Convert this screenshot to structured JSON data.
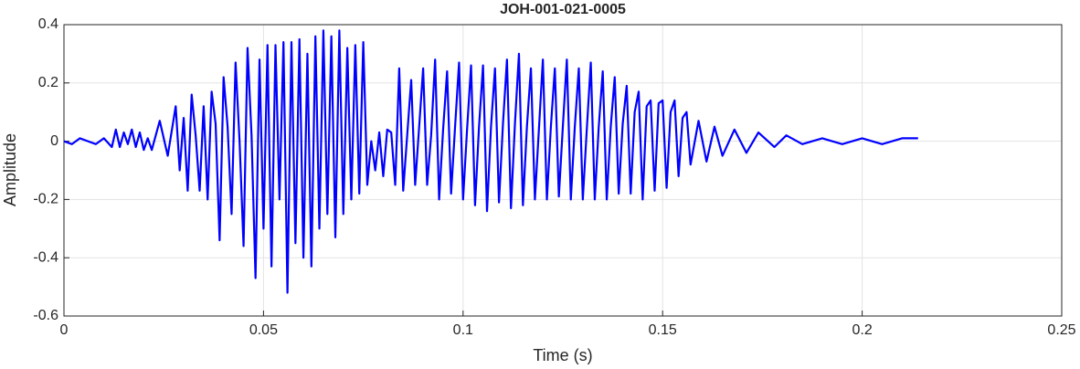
{
  "chart_data": {
    "type": "line",
    "title": "JOH-001-021-0005",
    "xlabel": "Time (s)",
    "ylabel": "Amplitude",
    "xlim": [
      0,
      0.25
    ],
    "xticks": [
      0,
      0.05,
      0.1,
      0.15,
      0.2,
      0.25
    ],
    "ylim": [
      -0.6,
      0.4
    ],
    "yticks": [
      -0.6,
      -0.4,
      -0.2,
      0,
      0.2,
      0.4
    ],
    "grid": true,
    "x": [
      0,
      0.002,
      0.004,
      0.006,
      0.008,
      0.01,
      0.012,
      0.013,
      0.014,
      0.015,
      0.016,
      0.017,
      0.018,
      0.019,
      0.02,
      0.021,
      0.022,
      0.024,
      0.026,
      0.028,
      0.029,
      0.03,
      0.031,
      0.032,
      0.033,
      0.034,
      0.035,
      0.036,
      0.037,
      0.038,
      0.039,
      0.04,
      0.041,
      0.042,
      0.043,
      0.044,
      0.045,
      0.046,
      0.047,
      0.048,
      0.049,
      0.05,
      0.051,
      0.052,
      0.053,
      0.054,
      0.055,
      0.056,
      0.057,
      0.058,
      0.059,
      0.06,
      0.061,
      0.062,
      0.063,
      0.064,
      0.065,
      0.066,
      0.067,
      0.068,
      0.069,
      0.07,
      0.071,
      0.072,
      0.073,
      0.074,
      0.075,
      0.076,
      0.077,
      0.078,
      0.079,
      0.08,
      0.081,
      0.082,
      0.083,
      0.084,
      0.085,
      0.086,
      0.087,
      0.088,
      0.089,
      0.09,
      0.091,
      0.092,
      0.093,
      0.094,
      0.095,
      0.096,
      0.097,
      0.098,
      0.099,
      0.1,
      0.101,
      0.102,
      0.103,
      0.104,
      0.105,
      0.106,
      0.107,
      0.108,
      0.109,
      0.11,
      0.111,
      0.112,
      0.113,
      0.114,
      0.115,
      0.116,
      0.117,
      0.118,
      0.119,
      0.12,
      0.121,
      0.122,
      0.123,
      0.124,
      0.125,
      0.126,
      0.127,
      0.128,
      0.129,
      0.13,
      0.131,
      0.132,
      0.133,
      0.134,
      0.135,
      0.136,
      0.137,
      0.138,
      0.139,
      0.14,
      0.141,
      0.142,
      0.143,
      0.144,
      0.145,
      0.146,
      0.147,
      0.148,
      0.149,
      0.15,
      0.151,
      0.152,
      0.153,
      0.154,
      0.155,
      0.156,
      0.157,
      0.159,
      0.161,
      0.163,
      0.165,
      0.168,
      0.171,
      0.174,
      0.178,
      0.181,
      0.185,
      0.19,
      0.195,
      0.2,
      0.205,
      0.21,
      0.214
    ],
    "series": [
      {
        "color": "#0000ff",
        "values": [
          0,
          -0.01,
          0.01,
          0,
          -0.01,
          0.01,
          -0.02,
          0.04,
          -0.02,
          0.03,
          -0.01,
          0.04,
          -0.02,
          0.03,
          -0.03,
          0.01,
          -0.03,
          0.07,
          -0.05,
          0.12,
          -0.1,
          0.08,
          -0.17,
          0.16,
          0.02,
          -0.17,
          0.12,
          -0.2,
          0.17,
          0.06,
          -0.34,
          0.22,
          0.05,
          -0.25,
          0.27,
          0,
          -0.36,
          0.32,
          0.02,
          -0.47,
          0.28,
          -0.3,
          0.33,
          -0.43,
          0.33,
          -0.2,
          0.34,
          -0.52,
          0.34,
          -0.35,
          0.35,
          -0.4,
          0.3,
          -0.43,
          0.36,
          -0.3,
          0.38,
          -0.25,
          0.36,
          -0.33,
          0.38,
          -0.25,
          0.32,
          -0.2,
          0.33,
          -0.18,
          0.34,
          -0.15,
          0,
          -0.1,
          0.03,
          -0.12,
          0.04,
          0.03,
          -0.15,
          0.25,
          -0.17,
          0.02,
          0.21,
          -0.15,
          0.05,
          0.25,
          -0.15,
          0.02,
          0.28,
          -0.2,
          0.04,
          0.24,
          -0.18,
          0.05,
          0.27,
          -0.2,
          0.04,
          0.26,
          -0.22,
          0.05,
          0.26,
          -0.24,
          0.05,
          0.25,
          -0.21,
          0.06,
          0.28,
          -0.23,
          0.06,
          0.3,
          -0.22,
          0.05,
          0.25,
          -0.2,
          0.04,
          0.28,
          -0.2,
          0.05,
          0.25,
          -0.19,
          0.05,
          0.28,
          -0.2,
          0.05,
          0.25,
          -0.2,
          0.04,
          0.27,
          -0.2,
          0.05,
          0.24,
          -0.2,
          0.05,
          0.22,
          -0.18,
          0.06,
          0.19,
          -0.18,
          0.1,
          0.17,
          -0.2,
          0.12,
          0.14,
          -0.17,
          0.13,
          0.14,
          -0.16,
          0.1,
          0.14,
          -0.12,
          0.08,
          0.1,
          -0.08,
          0.07,
          -0.07,
          0.05,
          -0.05,
          0.04,
          -0.04,
          0.03,
          -0.02,
          0.02,
          -0.01,
          0.01,
          -0.01,
          0.01,
          -0.01,
          0.01,
          0.01
        ]
      }
    ]
  }
}
